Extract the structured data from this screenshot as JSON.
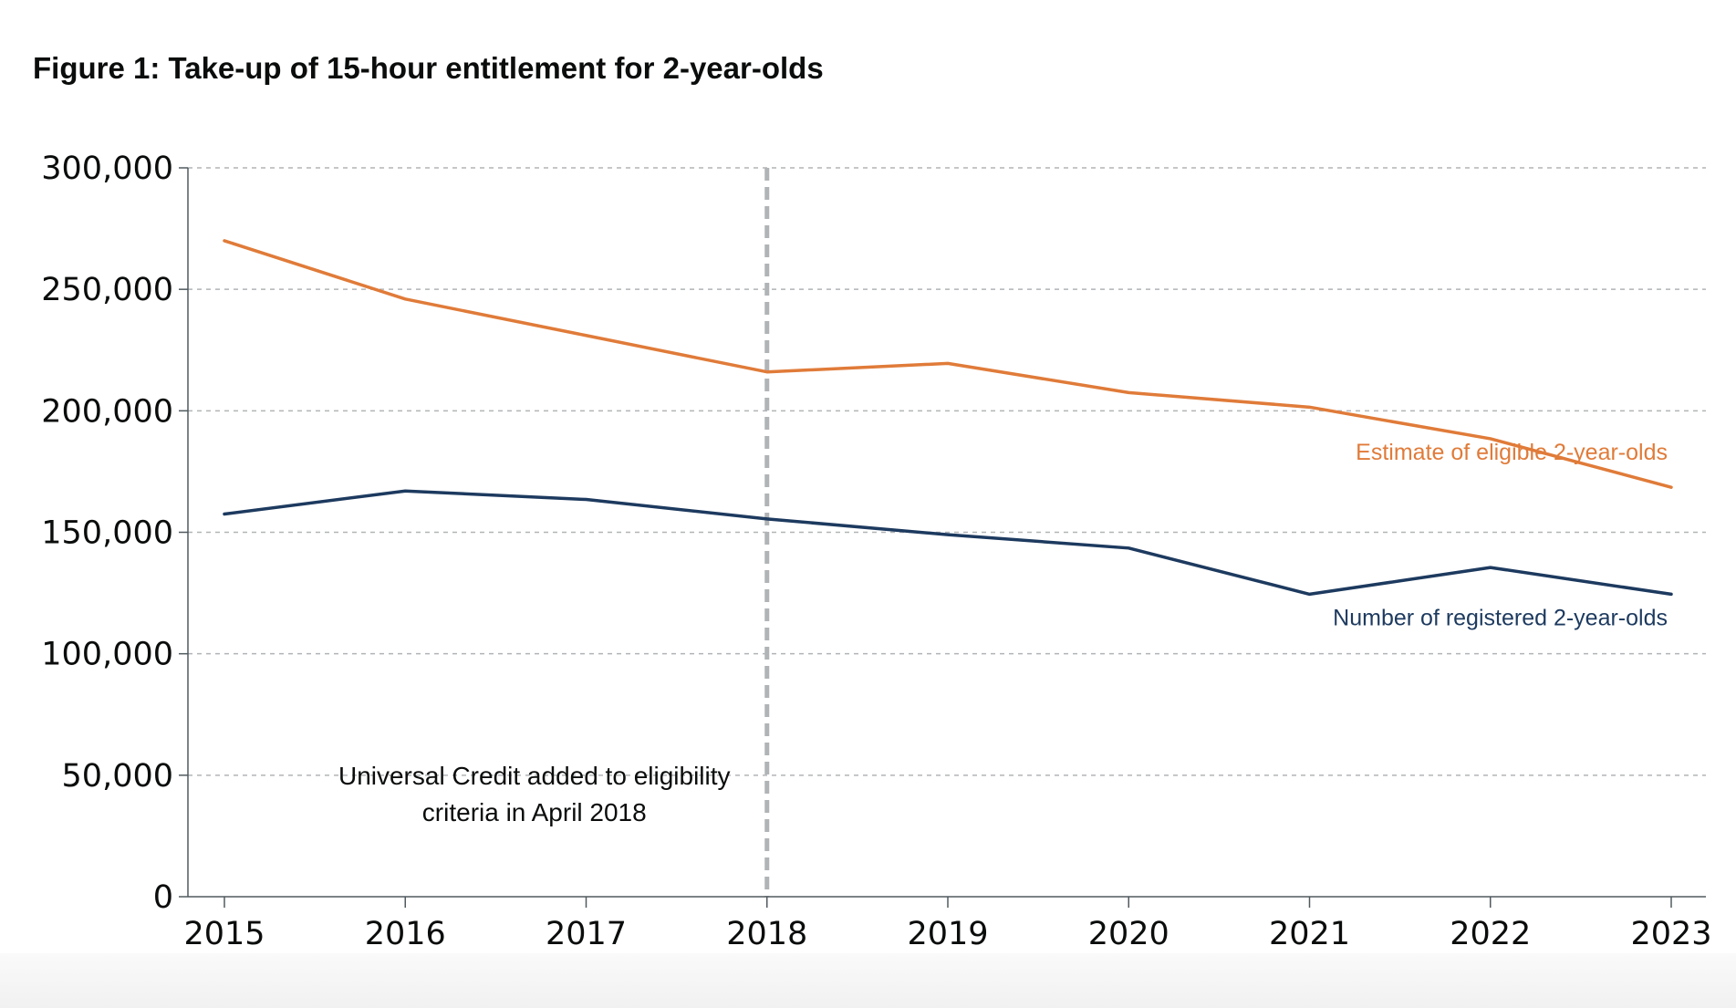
{
  "figure": {
    "title": "Figure 1: Take-up of 15-hour entitlement for 2-year-olds"
  },
  "colors": {
    "eligible": "#e07b39",
    "registered": "#1d3a5f",
    "grid": "#b1b4b6",
    "marker": "#b1b4b6",
    "axis": "#505a5f"
  },
  "chart_data": {
    "type": "line",
    "title": "Figure 1: Take-up of 15-hour entitlement for 2-year-olds",
    "xlabel": "",
    "ylabel": "",
    "x": [
      "2015",
      "2016",
      "2017",
      "2018",
      "2019",
      "2020",
      "2021",
      "2022",
      "2023"
    ],
    "ylim": [
      0,
      300000
    ],
    "yticks": [
      0,
      50000,
      100000,
      150000,
      200000,
      250000,
      300000
    ],
    "ytick_labels": [
      "0",
      "50,000",
      "100,000",
      "150,000",
      "200,000",
      "250,000",
      "300,000"
    ],
    "grid": true,
    "legend": "inline labels at right end of series",
    "series": [
      {
        "name": "Estimate of eligible 2-year-olds",
        "color": "#e07b39",
        "values": [
          270000,
          246000,
          231000,
          216000,
          219500,
          207500,
          201500,
          188500,
          168500
        ]
      },
      {
        "name": "Number of registered 2-year-olds",
        "color": "#1d3a5f",
        "values": [
          157500,
          167000,
          163500,
          155500,
          149000,
          143500,
          124500,
          135500,
          124500
        ]
      }
    ],
    "annotations": [
      {
        "x": "2018",
        "lines": [
          "Universal Credit added to eligibility",
          "criteria in April 2018"
        ]
      }
    ]
  }
}
